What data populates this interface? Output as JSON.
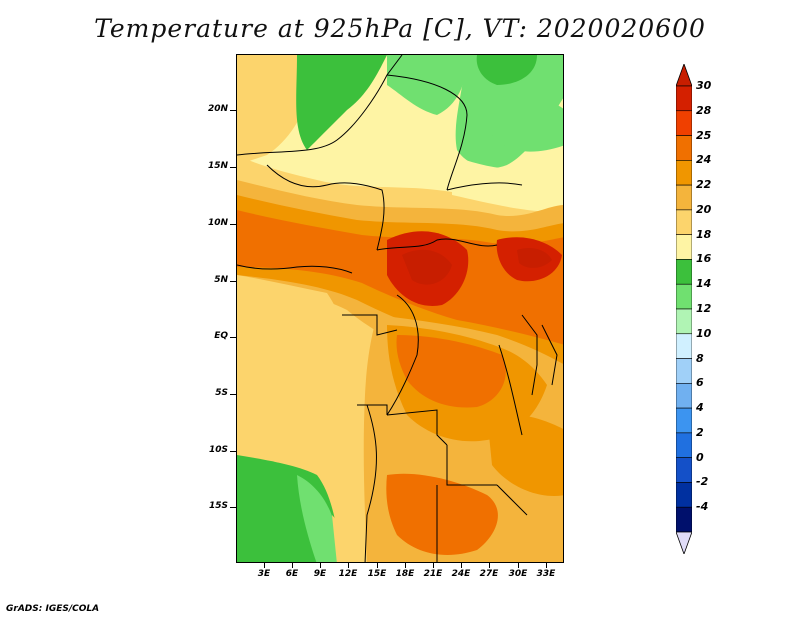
{
  "title": "Temperature at 925hPa [C], VT: 2020020600",
  "footer": "GrADS: IGES/COLA",
  "map": {
    "lat_labels": [
      "20N",
      "15N",
      "10N",
      "5N",
      "EQ",
      "5S",
      "10S",
      "15S"
    ],
    "lon_labels": [
      "3E",
      "6E",
      "9E",
      "12E",
      "15E",
      "18E",
      "21E",
      "24E",
      "27E",
      "30E",
      "33E"
    ]
  },
  "colorbar": {
    "labels": [
      "30",
      "28",
      "25",
      "24",
      "22",
      "20",
      "18",
      "16",
      "14",
      "12",
      "10",
      "8",
      "6",
      "4",
      "2",
      "0",
      "-2",
      "-4"
    ],
    "colors": [
      "#d42000",
      "#f04000",
      "#f07000",
      "#f09600",
      "#f4b43c",
      "#fcd46c",
      "#fef4a4",
      "#3cc03c",
      "#70e070",
      "#b0f4b4",
      "#d0f0ff",
      "#a0d0f8",
      "#70b0f0",
      "#3c94f0",
      "#2070e0",
      "#1450c8",
      "#0030a0",
      "#00106c"
    ],
    "arrow_top_color": "#c81e00",
    "arrow_bottom_color": "#e0dcf8"
  }
}
